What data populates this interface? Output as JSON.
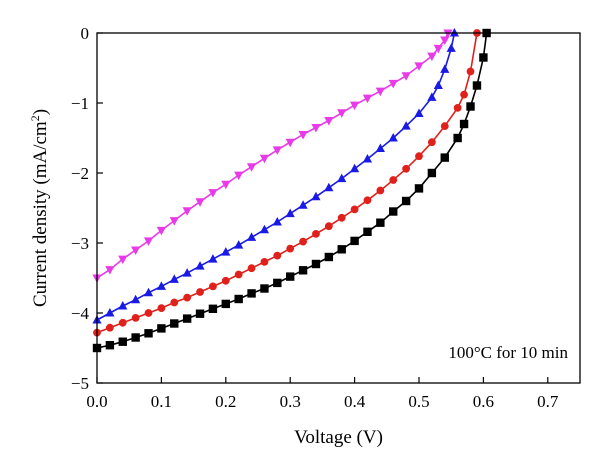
{
  "chart_data": {
    "type": "line",
    "title": "",
    "xlabel": "Voltage (V)",
    "ylabel_main": "Current density (mA/cm",
    "ylabel_sup": "2",
    "ylabel_close": ")",
    "xlim": [
      0.0,
      0.75
    ],
    "ylim": [
      -5,
      0
    ],
    "x_ticks": [
      0.0,
      0.1,
      0.2,
      0.3,
      0.4,
      0.5,
      0.6,
      0.7
    ],
    "x_tick_labels": [
      "0.0",
      "0.1",
      "0.2",
      "0.3",
      "0.4",
      "0.5",
      "0.6",
      "0.7"
    ],
    "y_ticks": [
      0,
      -1,
      -2,
      -3,
      -4,
      -5
    ],
    "y_tick_labels": [
      "0",
      "−1",
      "−2",
      "−3",
      "−4",
      "−5"
    ],
    "grid": false,
    "annotation": "100°C for 10 min",
    "series": [
      {
        "color": "#000000",
        "marker": "square",
        "x": [
          0.0,
          0.02,
          0.04,
          0.06,
          0.08,
          0.1,
          0.12,
          0.14,
          0.16,
          0.18,
          0.2,
          0.22,
          0.24,
          0.26,
          0.28,
          0.3,
          0.32,
          0.34,
          0.36,
          0.38,
          0.4,
          0.42,
          0.44,
          0.46,
          0.48,
          0.5,
          0.52,
          0.54,
          0.56,
          0.57,
          0.58,
          0.59,
          0.6,
          0.605
        ],
        "y": [
          -4.5,
          -4.46,
          -4.41,
          -4.35,
          -4.29,
          -4.22,
          -4.15,
          -4.08,
          -4.01,
          -3.94,
          -3.87,
          -3.8,
          -3.72,
          -3.65,
          -3.57,
          -3.48,
          -3.39,
          -3.3,
          -3.2,
          -3.09,
          -2.97,
          -2.84,
          -2.71,
          -2.55,
          -2.4,
          -2.22,
          -2.0,
          -1.78,
          -1.5,
          -1.3,
          -1.05,
          -0.75,
          -0.35,
          0.0
        ]
      },
      {
        "color": "#e0201b",
        "marker": "circle",
        "x": [
          0.0,
          0.02,
          0.04,
          0.06,
          0.08,
          0.1,
          0.12,
          0.14,
          0.16,
          0.18,
          0.2,
          0.22,
          0.24,
          0.26,
          0.28,
          0.3,
          0.32,
          0.34,
          0.36,
          0.38,
          0.4,
          0.42,
          0.44,
          0.46,
          0.48,
          0.5,
          0.52,
          0.54,
          0.56,
          0.57,
          0.58,
          0.59
        ],
        "y": [
          -4.28,
          -4.21,
          -4.14,
          -4.07,
          -4.0,
          -3.93,
          -3.85,
          -3.78,
          -3.7,
          -3.62,
          -3.54,
          -3.45,
          -3.36,
          -3.27,
          -3.18,
          -3.08,
          -2.98,
          -2.87,
          -2.76,
          -2.64,
          -2.52,
          -2.39,
          -2.25,
          -2.1,
          -1.94,
          -1.76,
          -1.56,
          -1.33,
          -1.07,
          -0.88,
          -0.55,
          0.0
        ]
      },
      {
        "color": "#1a1ae6",
        "marker": "triangle-up",
        "x": [
          0.0,
          0.02,
          0.04,
          0.06,
          0.08,
          0.1,
          0.12,
          0.14,
          0.16,
          0.18,
          0.2,
          0.22,
          0.24,
          0.26,
          0.28,
          0.3,
          0.32,
          0.34,
          0.36,
          0.38,
          0.4,
          0.42,
          0.44,
          0.46,
          0.48,
          0.5,
          0.52,
          0.53,
          0.54,
          0.55,
          0.555
        ],
        "y": [
          -4.1,
          -4.0,
          -3.9,
          -3.81,
          -3.71,
          -3.62,
          -3.52,
          -3.43,
          -3.33,
          -3.23,
          -3.13,
          -3.03,
          -2.92,
          -2.81,
          -2.7,
          -2.58,
          -2.46,
          -2.34,
          -2.21,
          -2.08,
          -1.94,
          -1.8,
          -1.65,
          -1.5,
          -1.33,
          -1.15,
          -0.92,
          -0.75,
          -0.52,
          -0.22,
          0.0
        ]
      },
      {
        "color": "#e83ae8",
        "marker": "triangle-down",
        "x": [
          0.0,
          0.02,
          0.04,
          0.06,
          0.08,
          0.1,
          0.12,
          0.14,
          0.16,
          0.18,
          0.2,
          0.22,
          0.24,
          0.26,
          0.28,
          0.3,
          0.32,
          0.34,
          0.36,
          0.38,
          0.4,
          0.42,
          0.44,
          0.46,
          0.48,
          0.5,
          0.52,
          0.53,
          0.54,
          0.545
        ],
        "y": [
          -3.5,
          -3.38,
          -3.23,
          -3.1,
          -2.97,
          -2.82,
          -2.68,
          -2.54,
          -2.41,
          -2.28,
          -2.16,
          -2.03,
          -1.91,
          -1.79,
          -1.67,
          -1.56,
          -1.45,
          -1.35,
          -1.25,
          -1.14,
          -1.03,
          -0.93,
          -0.83,
          -0.72,
          -0.61,
          -0.47,
          -0.33,
          -0.22,
          -0.1,
          0.0
        ]
      }
    ]
  }
}
